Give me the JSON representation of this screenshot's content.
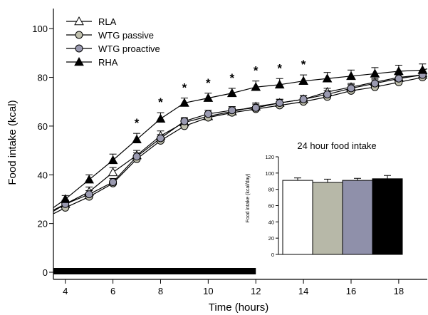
{
  "chart_data": [
    {
      "type": "line",
      "title": "",
      "xlabel": "Time (hours)",
      "ylabel": "Food intake (kcal)",
      "xlim": [
        3.5,
        19.2
      ],
      "ylim": [
        0,
        110
      ],
      "xticks": [
        4,
        6,
        8,
        10,
        12,
        14,
        16,
        18
      ],
      "yticks": [
        0,
        20,
        40,
        60,
        80,
        100
      ],
      "x": [
        3.5,
        4,
        5,
        6,
        7,
        8,
        9,
        10,
        11,
        12,
        13,
        14,
        15,
        16,
        17,
        18,
        19,
        19.2
      ],
      "dark_phase_bar": {
        "x_start": 3.5,
        "x_end": 12,
        "color": "#000000"
      },
      "significance_marker": "*",
      "significance_x": [
        7,
        8,
        9,
        10,
        11,
        12,
        13,
        14
      ],
      "legend": {
        "placement": "top-left",
        "entries": [
          "RLA",
          "WTG passive",
          "WTG proactive",
          "RHA"
        ]
      },
      "series": [
        {
          "name": "RLA",
          "marker": "triangle-open",
          "color": "#ffffff",
          "values": [
            25.5,
            28,
            33,
            41,
            48,
            56,
            61.5,
            64,
            66,
            68,
            69.5,
            71,
            74,
            76,
            78,
            80,
            81,
            81.5
          ],
          "errors": [
            1.2,
            1.5,
            2,
            2,
            2,
            2,
            1.5,
            1.5,
            1.5,
            1.5,
            1.5,
            1.5,
            1.5,
            1.5,
            1.5,
            1.5,
            1.5,
            1.5
          ]
        },
        {
          "name": "WTG passive",
          "marker": "circle",
          "color": "#c0c0ae",
          "values": [
            24,
            26.5,
            31,
            36.5,
            46.5,
            54,
            60,
            63.5,
            65.5,
            67,
            68.5,
            70,
            72,
            74.5,
            76,
            78,
            80,
            80.5
          ],
          "errors": [
            1,
            1,
            1,
            1,
            1,
            1,
            1,
            1,
            1,
            1,
            1,
            1,
            1,
            1,
            1,
            1,
            1,
            1
          ]
        },
        {
          "name": "WTG proactive",
          "marker": "circle",
          "color": "#9a9ab0",
          "values": [
            25,
            28,
            32,
            37,
            47.5,
            55,
            62,
            65,
            66.5,
            67.5,
            69.5,
            71,
            73,
            75.5,
            77.5,
            79.5,
            81,
            81.5
          ],
          "errors": [
            1.5,
            1.5,
            1.5,
            1.5,
            1.5,
            1.5,
            1.5,
            1.5,
            1.5,
            1.5,
            1.5,
            1.5,
            1.5,
            1.5,
            1.5,
            1.5,
            1.5,
            1.5
          ]
        },
        {
          "name": "RHA",
          "marker": "triangle-filled",
          "color": "#000000",
          "values": [
            26.5,
            30,
            38,
            46,
            54.5,
            63,
            69.5,
            71.5,
            73.5,
            76,
            77,
            78.5,
            79.5,
            80.5,
            81.5,
            82.5,
            83,
            83.5
          ],
          "errors": [
            1.5,
            1.5,
            2,
            2.5,
            2.5,
            2.5,
            2,
            2,
            2,
            2.5,
            2.5,
            2.5,
            2.5,
            2.5,
            2.5,
            2.5,
            2.5,
            2.5
          ]
        }
      ]
    },
    {
      "type": "bar",
      "title": "24 hour food intake",
      "xlabel": "",
      "ylabel": "Food intake (kcal/day)",
      "ylim": [
        0,
        120
      ],
      "yticks": [
        0,
        20,
        40,
        60,
        80,
        100,
        120
      ],
      "categories": [
        "RLA",
        "WTG passive",
        "WTG proactive",
        "RHA"
      ],
      "values": [
        91,
        88.5,
        91,
        93
      ],
      "errors": [
        3,
        4,
        2.5,
        4
      ],
      "colors": [
        "#ffffff",
        "#b7b8a8",
        "#8f90aa",
        "#000000"
      ]
    }
  ]
}
